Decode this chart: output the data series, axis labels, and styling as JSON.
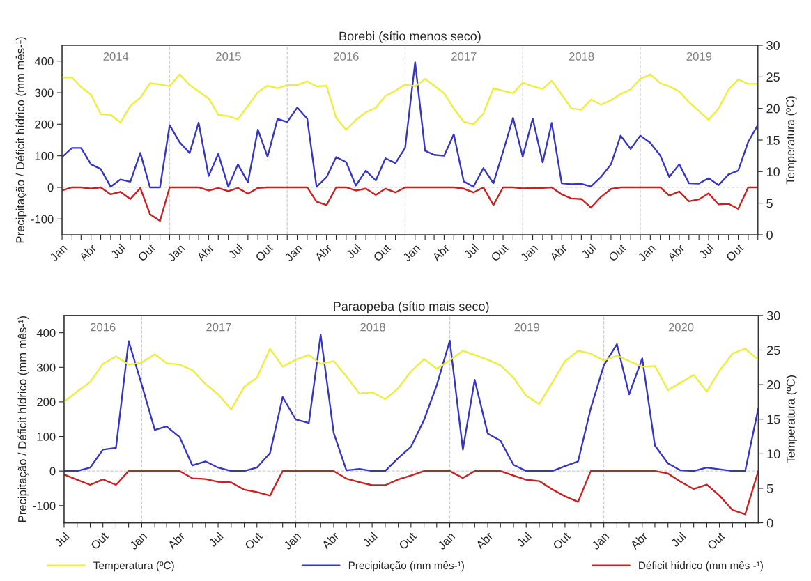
{
  "chart_data": [
    {
      "type": "line",
      "title": "Borebi (sítio menos seco)",
      "ylabel": "Precipitação / Déficit hídrico (mm mês-¹)",
      "y2label": "Temperatura (ºC)",
      "x": [
        "2014-01",
        "2014-02",
        "2014-03",
        "2014-04",
        "2014-05",
        "2014-06",
        "2014-07",
        "2014-08",
        "2014-09",
        "2014-10",
        "2014-11",
        "2014-12",
        "2015-01",
        "2015-02",
        "2015-03",
        "2015-04",
        "2015-05",
        "2015-06",
        "2015-07",
        "2015-08",
        "2015-09",
        "2015-10",
        "2015-11",
        "2015-12",
        "2016-01",
        "2016-02",
        "2016-03",
        "2016-04",
        "2016-05",
        "2016-06",
        "2016-07",
        "2016-08",
        "2016-09",
        "2016-10",
        "2016-11",
        "2016-12",
        "2017-01",
        "2017-02",
        "2017-03",
        "2017-04",
        "2017-05",
        "2017-06",
        "2017-07",
        "2017-08",
        "2017-09",
        "2017-10",
        "2017-11",
        "2017-12",
        "2018-01",
        "2018-02",
        "2018-03",
        "2018-04",
        "2018-05",
        "2018-06",
        "2018-07",
        "2018-08",
        "2018-09",
        "2018-10",
        "2018-11",
        "2018-12",
        "2019-01",
        "2019-02",
        "2019-03",
        "2019-04",
        "2019-05",
        "2019-06",
        "2019-07",
        "2019-08",
        "2019-09",
        "2019-10",
        "2019-11",
        "2019-12"
      ],
      "series": [
        {
          "color": "#eeee3a",
          "axis": "y2",
          "values": [
            24.9,
            24.9,
            23.4,
            22.2,
            19.1,
            19.0,
            17.8,
            20.4,
            21.7,
            24.0,
            23.8,
            23.5,
            25.4,
            23.7,
            22.7,
            21.6,
            19.0,
            18.8,
            18.3,
            20.4,
            22.6,
            23.6,
            23.2,
            23.7,
            23.7,
            24.3,
            23.5,
            23.6,
            18.5,
            16.6,
            18.2,
            19.4,
            20.1,
            22.0,
            22.8,
            23.8,
            23.5,
            24.7,
            23.6,
            22.4,
            20.0,
            17.9,
            17.5,
            19.2,
            23.2,
            22.8,
            22.4,
            24.1,
            23.5,
            23.1,
            24.4,
            22.2,
            20.0,
            19.8,
            21.4,
            20.6,
            21.3,
            22.3,
            23.0,
            24.7,
            25.4,
            24.0,
            23.5,
            22.7,
            21.0,
            19.6,
            18.2,
            20.0,
            23.0,
            24.6,
            23.9,
            23.9
          ]
        },
        {
          "color": "#3535c8",
          "values": [
            96,
            125,
            125,
            73,
            58,
            2,
            25,
            18,
            109,
            0,
            0,
            197,
            143,
            109,
            205,
            36,
            106,
            2,
            73,
            16,
            183,
            97,
            217,
            207,
            253,
            218,
            2,
            32,
            96,
            80,
            6,
            53,
            22,
            92,
            77,
            125,
            396,
            116,
            103,
            100,
            168,
            19,
            2,
            61,
            13,
            113,
            220,
            97,
            218,
            79,
            204,
            13,
            10,
            11,
            3,
            33,
            73,
            164,
            122,
            164,
            141,
            101,
            33,
            73,
            13,
            12,
            29,
            7,
            41,
            53,
            144,
            198
          ]
        },
        {
          "color": "#cc2020",
          "values": [
            -10,
            0,
            0,
            -4,
            0,
            -22,
            -14,
            -37,
            -2,
            -85,
            -106,
            0,
            0,
            0,
            0,
            -10,
            -2,
            -12,
            -2,
            -20,
            -2,
            0,
            0,
            0,
            0,
            0,
            -45,
            -56,
            0,
            0,
            -10,
            -4,
            -24,
            -4,
            -16,
            0,
            0,
            0,
            0,
            0,
            0,
            -4,
            -16,
            0,
            -56,
            0,
            0,
            -3,
            -2,
            -2,
            0,
            -22,
            -35,
            -37,
            -64,
            -30,
            -5,
            0,
            0,
            0,
            0,
            0,
            -26,
            -13,
            -44,
            -38,
            -19,
            -54,
            -52,
            -68,
            0,
            0
          ]
        }
      ],
      "ylim": [
        -150,
        450
      ],
      "yticks": [
        -100,
        0,
        100,
        200,
        300,
        400
      ],
      "y2lim": [
        0,
        30
      ],
      "y2ticks": [
        0,
        5,
        10,
        15,
        20,
        25,
        30
      ],
      "xlim": [
        "2014-01",
        "2019-12"
      ],
      "xticks": [
        {
          "value": "2014-01",
          "label": "Jan"
        },
        {
          "value": "2014-02",
          "label": null
        },
        {
          "value": "2014-03",
          "label": null
        },
        {
          "value": "2014-04",
          "label": "Abr"
        },
        {
          "value": "2014-05",
          "label": null
        },
        {
          "value": "2014-06",
          "label": null
        },
        {
          "value": "2014-07",
          "label": "Jul"
        },
        {
          "value": "2014-08",
          "label": null
        },
        {
          "value": "2014-09",
          "label": null
        },
        {
          "value": "2014-10",
          "label": "Out"
        },
        {
          "value": "2014-11",
          "label": null
        },
        {
          "value": "2014-12",
          "label": null
        },
        {
          "value": "2015-01",
          "label": "Jan"
        },
        {
          "value": "2015-02",
          "label": null
        },
        {
          "value": "2015-03",
          "label": null
        },
        {
          "value": "2015-04",
          "label": "Abr"
        },
        {
          "value": "2015-05",
          "label": null
        },
        {
          "value": "2015-06",
          "label": null
        },
        {
          "value": "2015-07",
          "label": "Jul"
        },
        {
          "value": "2015-08",
          "label": null
        },
        {
          "value": "2015-09",
          "label": null
        },
        {
          "value": "2015-10",
          "label": "Out"
        },
        {
          "value": "2015-11",
          "label": null
        },
        {
          "value": "2015-12",
          "label": null
        },
        {
          "value": "2016-01",
          "label": "Jan"
        },
        {
          "value": "2016-02",
          "label": null
        },
        {
          "value": "2016-03",
          "label": null
        },
        {
          "value": "2016-04",
          "label": "Abr"
        },
        {
          "value": "2016-05",
          "label": null
        },
        {
          "value": "2016-06",
          "label": null
        },
        {
          "value": "2016-07",
          "label": "Jul"
        },
        {
          "value": "2016-08",
          "label": null
        },
        {
          "value": "2016-09",
          "label": null
        },
        {
          "value": "2016-10",
          "label": "Out"
        },
        {
          "value": "2016-11",
          "label": null
        },
        {
          "value": "2016-12",
          "label": null
        },
        {
          "value": "2017-01",
          "label": "Jan"
        },
        {
          "value": "2017-02",
          "label": null
        },
        {
          "value": "2017-03",
          "label": null
        },
        {
          "value": "2017-04",
          "label": "Abr"
        },
        {
          "value": "2017-05",
          "label": null
        },
        {
          "value": "2017-06",
          "label": null
        },
        {
          "value": "2017-07",
          "label": "Jul"
        },
        {
          "value": "2017-08",
          "label": null
        },
        {
          "value": "2017-09",
          "label": null
        },
        {
          "value": "2017-10",
          "label": "Out"
        },
        {
          "value": "2017-11",
          "label": null
        },
        {
          "value": "2017-12",
          "label": null
        },
        {
          "value": "2018-01",
          "label": "Jan"
        },
        {
          "value": "2018-02",
          "label": null
        },
        {
          "value": "2018-03",
          "label": null
        },
        {
          "value": "2018-04",
          "label": "Abr"
        },
        {
          "value": "2018-05",
          "label": null
        },
        {
          "value": "2018-06",
          "label": null
        },
        {
          "value": "2018-07",
          "label": "Jul"
        },
        {
          "value": "2018-08",
          "label": null
        },
        {
          "value": "2018-09",
          "label": null
        },
        {
          "value": "2018-10",
          "label": "Out"
        },
        {
          "value": "2018-11",
          "label": null
        },
        {
          "value": "2018-12",
          "label": null
        },
        {
          "value": "2019-01",
          "label": "Jan"
        },
        {
          "value": "2019-02",
          "label": null
        },
        {
          "value": "2019-03",
          "label": null
        },
        {
          "value": "2019-04",
          "label": "Abr"
        },
        {
          "value": "2019-05",
          "label": null
        },
        {
          "value": "2019-06",
          "label": null
        },
        {
          "value": "2019-07",
          "label": "Jul"
        },
        {
          "value": "2019-08",
          "label": null
        },
        {
          "value": "2019-09",
          "label": null
        },
        {
          "value": "2019-10",
          "label": "Out"
        },
        {
          "value": "2019-11",
          "label": null
        },
        {
          "value": "2019-12",
          "label": null
        }
      ],
      "ref_lines": [
        {
          "axis": "y",
          "value": 0,
          "color": "#d0d0d0",
          "line_style": "dashed"
        },
        {
          "axis": "x",
          "value": "2014-12",
          "color": "#d0d0d0",
          "line_style": "dashed"
        },
        {
          "axis": "x",
          "value": "2015-12",
          "color": "#d0d0d0",
          "line_style": "dashed"
        },
        {
          "axis": "x",
          "value": "2016-12",
          "color": "#d0d0d0",
          "line_style": "dashed"
        },
        {
          "axis": "x",
          "value": "2017-12",
          "color": "#d0d0d0",
          "line_style": "dashed"
        },
        {
          "axis": "x",
          "value": "2018-12",
          "color": "#d0d0d0",
          "line_style": "dashed"
        }
      ],
      "annotations": [
        "2014",
        "2015",
        "2016",
        "2017",
        "2018",
        "2019"
      ]
    },
    {
      "type": "line",
      "title": "Paraopeba (sítio mais seco)",
      "ylabel": "Precipitação / Déficit hídrico (mm mês-¹)",
      "y2label": "Temperatura (ºC)",
      "legend": "bottom",
      "x": [
        "2016-07",
        "2016-08",
        "2016-09",
        "2016-10",
        "2016-11",
        "2016-12",
        "2017-01",
        "2017-02",
        "2017-03",
        "2017-04",
        "2017-05",
        "2017-06",
        "2017-07",
        "2017-08",
        "2017-09",
        "2017-10",
        "2017-11",
        "2017-12",
        "2018-01",
        "2018-02",
        "2018-03",
        "2018-04",
        "2018-05",
        "2018-06",
        "2018-07",
        "2018-08",
        "2018-09",
        "2018-10",
        "2018-11",
        "2018-12",
        "2019-01",
        "2019-02",
        "2019-03",
        "2019-04",
        "2019-05",
        "2019-06",
        "2019-07",
        "2019-08",
        "2019-09",
        "2019-10",
        "2019-11",
        "2019-12",
        "2020-01",
        "2020-02",
        "2020-03",
        "2020-04",
        "2020-05",
        "2020-06",
        "2020-07",
        "2020-08",
        "2020-09",
        "2020-10",
        "2020-11",
        "2020-12",
        "2021-01"
      ],
      "series": [
        {
          "name": "Temperatura (ºC)",
          "color": "#eeee3a",
          "axis": "y2",
          "values": [
            17.5,
            19.0,
            20.4,
            23.0,
            24.1,
            22.9,
            23.2,
            24.4,
            23.1,
            22.9,
            22.1,
            20.1,
            18.6,
            16.4,
            19.7,
            21.0,
            25.2,
            22.6,
            23.6,
            24.3,
            23.0,
            23.4,
            21.2,
            18.7,
            18.9,
            17.9,
            19.5,
            21.9,
            23.7,
            22.3,
            23.5,
            24.9,
            24.3,
            23.6,
            22.8,
            21.0,
            18.4,
            17.2,
            20.3,
            23.4,
            24.9,
            24.5,
            23.5,
            24.2,
            23.4,
            22.6,
            22.7,
            19.2,
            20.3,
            21.4,
            19.0,
            22.0,
            24.5,
            25.2,
            23.6
          ]
        },
        {
          "name": "Precipitação (mm mês-¹)",
          "color": "#3535c8",
          "values": [
            0,
            0,
            10,
            62,
            67,
            376,
            250,
            119,
            129,
            98,
            16,
            28,
            10,
            0,
            0,
            10,
            52,
            214,
            149,
            139,
            394,
            110,
            2,
            6,
            0,
            0,
            38,
            70,
            148,
            248,
            377,
            62,
            264,
            108,
            88,
            18,
            0,
            0,
            0,
            14,
            28,
            181,
            306,
            367,
            222,
            326,
            74,
            22,
            2,
            0,
            10,
            5,
            0,
            0,
            181
          ]
        },
        {
          "name": "Déficit hídrico (mm mês -¹)",
          "color": "#cc2020",
          "values": [
            -10,
            -25,
            -40,
            -24,
            -40,
            0,
            0,
            0,
            0,
            0,
            -21,
            -23,
            -31,
            -33,
            -54,
            -61,
            -71,
            0,
            0,
            0,
            0,
            0,
            -22,
            -32,
            -41,
            -41,
            -24,
            -13,
            0,
            0,
            0,
            -20,
            0,
            0,
            0,
            -13,
            -25,
            -29,
            -53,
            -73,
            -89,
            0,
            0,
            0,
            0,
            0,
            0,
            -7,
            -31,
            -52,
            -39,
            -71,
            -113,
            -125,
            0
          ]
        }
      ],
      "ylim": [
        -150,
        450
      ],
      "yticks": [
        -100,
        0,
        100,
        200,
        300,
        400
      ],
      "y2lim": [
        0,
        30
      ],
      "y2ticks": [
        0,
        5,
        10,
        15,
        20,
        25,
        30
      ],
      "xlim": [
        "2016-07",
        "2021-01"
      ],
      "xticks": [
        {
          "value": "2016-07",
          "label": "Jul"
        },
        {
          "value": "2016-08",
          "label": null
        },
        {
          "value": "2016-09",
          "label": null
        },
        {
          "value": "2016-10",
          "label": "Out"
        },
        {
          "value": "2016-11",
          "label": null
        },
        {
          "value": "2016-12",
          "label": null
        },
        {
          "value": "2017-01",
          "label": "Jan"
        },
        {
          "value": "2017-02",
          "label": null
        },
        {
          "value": "2017-03",
          "label": null
        },
        {
          "value": "2017-04",
          "label": "Abr"
        },
        {
          "value": "2017-05",
          "label": null
        },
        {
          "value": "2017-06",
          "label": null
        },
        {
          "value": "2017-07",
          "label": "Jul"
        },
        {
          "value": "2017-08",
          "label": null
        },
        {
          "value": "2017-09",
          "label": null
        },
        {
          "value": "2017-10",
          "label": "Out"
        },
        {
          "value": "2017-11",
          "label": null
        },
        {
          "value": "2017-12",
          "label": null
        },
        {
          "value": "2018-01",
          "label": "Jan"
        },
        {
          "value": "2018-02",
          "label": null
        },
        {
          "value": "2018-03",
          "label": null
        },
        {
          "value": "2018-04",
          "label": "Abr"
        },
        {
          "value": "2018-05",
          "label": null
        },
        {
          "value": "2018-06",
          "label": null
        },
        {
          "value": "2018-07",
          "label": "Jul"
        },
        {
          "value": "2018-08",
          "label": null
        },
        {
          "value": "2018-09",
          "label": null
        },
        {
          "value": "2018-10",
          "label": "Out"
        },
        {
          "value": "2018-11",
          "label": null
        },
        {
          "value": "2018-12",
          "label": null
        },
        {
          "value": "2019-01",
          "label": "Jan"
        },
        {
          "value": "2019-02",
          "label": null
        },
        {
          "value": "2019-03",
          "label": null
        },
        {
          "value": "2019-04",
          "label": "Abr"
        },
        {
          "value": "2019-05",
          "label": null
        },
        {
          "value": "2019-06",
          "label": null
        },
        {
          "value": "2019-07",
          "label": "Jul"
        },
        {
          "value": "2019-08",
          "label": null
        },
        {
          "value": "2019-09",
          "label": null
        },
        {
          "value": "2019-10",
          "label": "Out"
        },
        {
          "value": "2019-11",
          "label": null
        },
        {
          "value": "2019-12",
          "label": null
        },
        {
          "value": "2020-01",
          "label": "Jan"
        },
        {
          "value": "2020-02",
          "label": null
        },
        {
          "value": "2020-03",
          "label": null
        },
        {
          "value": "2020-04",
          "label": "Abr"
        },
        {
          "value": "2020-05",
          "label": null
        },
        {
          "value": "2020-06",
          "label": null
        },
        {
          "value": "2020-07",
          "label": "Jul"
        },
        {
          "value": "2020-08",
          "label": null
        },
        {
          "value": "2020-09",
          "label": null
        },
        {
          "value": "2020-10",
          "label": "Out"
        },
        {
          "value": "2020-11",
          "label": null
        },
        {
          "value": "2020-12",
          "label": null
        }
      ],
      "ref_lines": [
        {
          "axis": "y",
          "value": 0,
          "color": "#d0d0d0",
          "line_style": "dashed"
        },
        {
          "axis": "x",
          "value": "2017-01",
          "color": "#d0d0d0",
          "line_style": "dashed"
        },
        {
          "axis": "x",
          "value": "2018-01",
          "color": "#d0d0d0",
          "line_style": "dashed"
        },
        {
          "axis": "x",
          "value": "2019-01",
          "color": "#d0d0d0",
          "line_style": "dashed"
        },
        {
          "axis": "x",
          "value": "2020-01",
          "color": "#d0d0d0",
          "line_style": "dashed"
        }
      ],
      "annotations": [
        "2016",
        "2017",
        "2018",
        "2019",
        "2020"
      ]
    }
  ]
}
